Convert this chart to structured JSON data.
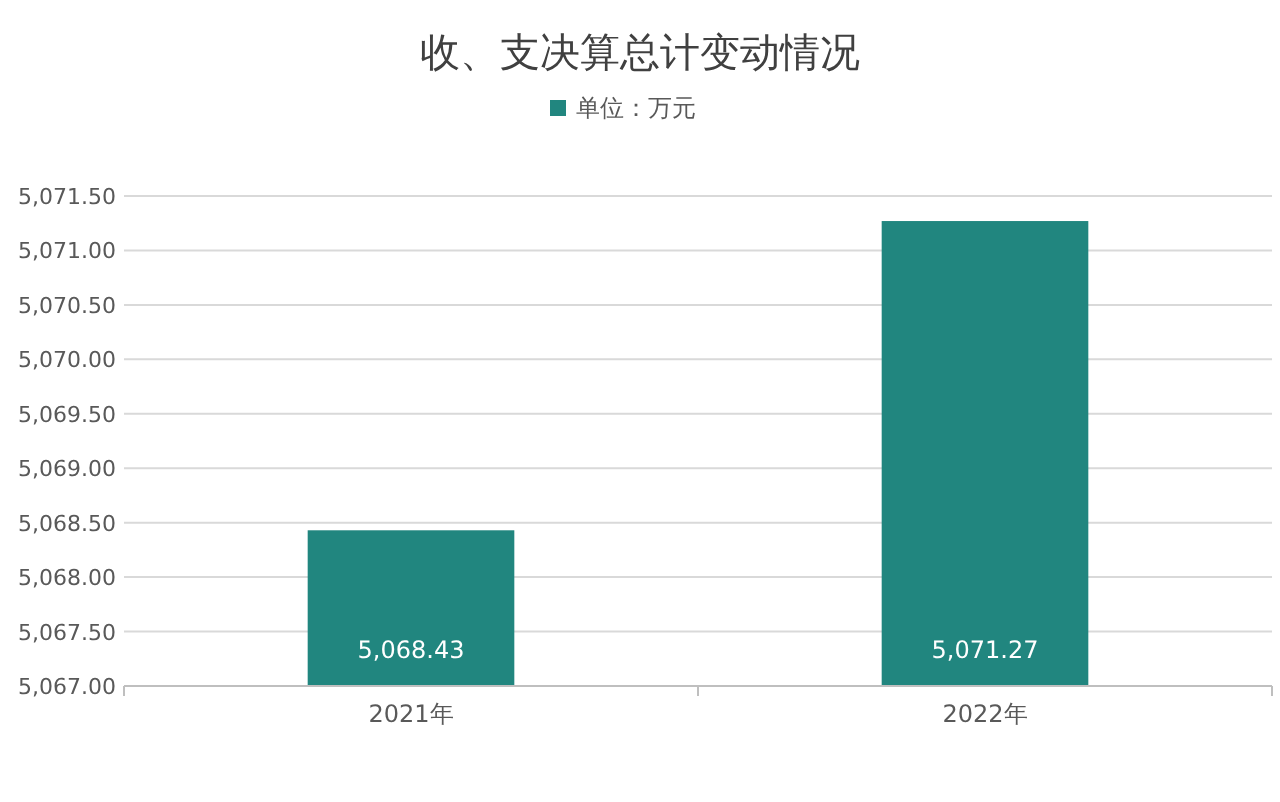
{
  "chart_data": {
    "type": "bar",
    "title": "收、支决算总计变动情况",
    "categories": [
      "2021年",
      "2022年"
    ],
    "series": [
      {
        "name": "单位：万元",
        "color": "#21867f",
        "values": [
          5068.43,
          5071.27
        ],
        "value_labels": [
          "5,068.43",
          "5,071.27"
        ]
      }
    ],
    "ylim": [
      5067,
      5071.5
    ],
    "yticks": [
      {
        "value": 5067,
        "label": "5,067.00"
      },
      {
        "value": 5067.5,
        "label": "5,067.50"
      },
      {
        "value": 5068,
        "label": "5,068.00"
      },
      {
        "value": 5068.5,
        "label": "5,068.50"
      },
      {
        "value": 5069,
        "label": "5,069.00"
      },
      {
        "value": 5069.5,
        "label": "5,069.50"
      },
      {
        "value": 5070,
        "label": "5,070.00"
      },
      {
        "value": 5070.5,
        "label": "5,070.50"
      },
      {
        "value": 5071,
        "label": "5,071.00"
      },
      {
        "value": 5071.5,
        "label": "5,071.50"
      }
    ],
    "grid": "y",
    "legend": "top"
  }
}
